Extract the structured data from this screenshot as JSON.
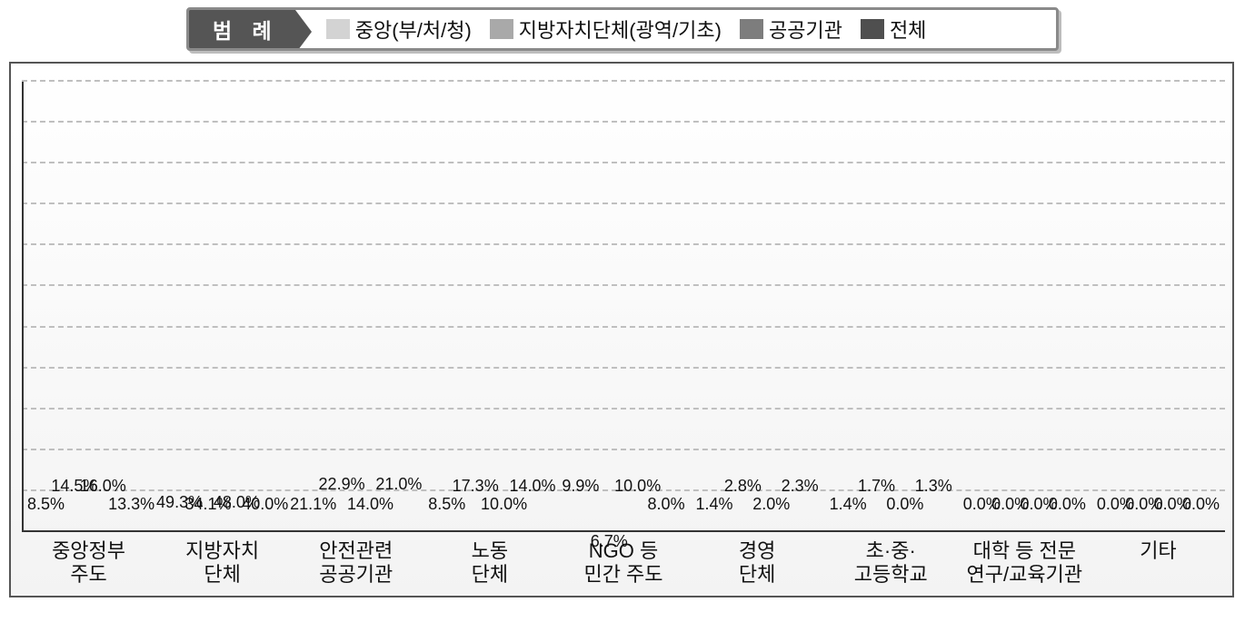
{
  "legend": {
    "title": "범 례",
    "items": [
      {
        "label": "중앙(부/처/청)"
      },
      {
        "label": "지방자치단체(광역/기초)"
      },
      {
        "label": "공공기관"
      },
      {
        "label": "전체"
      }
    ]
  },
  "chart": {
    "type": "bar-grouped",
    "y_max": 55,
    "grid_step": 5,
    "grid_color": "#bfbfbf",
    "axis_color": "#333333",
    "background_top": "#ffffff",
    "background_bottom": "#f3f3f3",
    "series_colors": [
      "#d3d3d3",
      "#a9a9a9",
      "#7d7d7d",
      "#4f4f4f"
    ],
    "categories": [
      {
        "label_lines": [
          "중앙정부",
          "주도"
        ],
        "values": [
          8.5,
          14.5,
          16.0,
          13.3
        ],
        "value_labels": [
          "8.5%",
          "14.5%",
          "16.0%",
          "13.3%"
        ],
        "label_dy": [
          -2,
          -22,
          -22,
          -2
        ]
      },
      {
        "label_lines": [
          "지방자치",
          "단체"
        ],
        "values": [
          49.3,
          34.1,
          48.0,
          40.0
        ],
        "value_labels": [
          "49.3%",
          "34.1%",
          "48.0%",
          "40.0%"
        ],
        "label_dy": [
          -4,
          -2,
          -4,
          -2
        ]
      },
      {
        "label_lines": [
          "안전관련",
          "공공기관"
        ],
        "values": [
          21.1,
          22.9,
          14.0,
          21.0
        ],
        "value_labels": [
          "21.1%",
          "22.9%",
          "14.0%",
          "21.0%"
        ],
        "label_dy": [
          -2,
          -24,
          -2,
          -24
        ]
      },
      {
        "label_lines": [
          "노동",
          "단체"
        ],
        "values": [
          8.5,
          17.3,
          10.0,
          14.0
        ],
        "value_labels": [
          "8.5%",
          "17.3%",
          "10.0%",
          "14.0%"
        ],
        "label_dy": [
          -2,
          -22,
          -2,
          -22
        ]
      },
      {
        "label_lines": [
          "NGO 등",
          "민간 주도"
        ],
        "values": [
          9.9,
          6.7,
          10.0,
          8.0
        ],
        "value_labels": [
          "9.9%",
          "6.7%",
          "10.0%",
          "8.0%"
        ],
        "label_dy": [
          -22,
          20,
          -22,
          -2
        ]
      },
      {
        "label_lines": [
          "경영",
          "단체"
        ],
        "values": [
          1.4,
          2.8,
          2.0,
          2.3
        ],
        "value_labels": [
          "1.4%",
          "2.8%",
          "2.0%",
          "2.3%"
        ],
        "label_dy": [
          -2,
          -22,
          -2,
          -22
        ]
      },
      {
        "label_lines": [
          "초·중·",
          "고등학교"
        ],
        "values": [
          1.4,
          1.7,
          0.0,
          1.3
        ],
        "value_labels": [
          "1.4%",
          "1.7%",
          "0.0%",
          "1.3%"
        ],
        "label_dy": [
          -2,
          -22,
          -2,
          -22
        ]
      },
      {
        "label_lines": [
          "대학 등 전문",
          "연구/교육기관"
        ],
        "values": [
          0.0,
          0.0,
          0.0,
          0.0
        ],
        "value_labels": [
          "0.0%",
          "0.0%",
          "0.0%",
          "0.0%"
        ],
        "label_dy": [
          -2,
          -2,
          -2,
          -2
        ]
      },
      {
        "label_lines": [
          "기타"
        ],
        "values": [
          0.0,
          0.0,
          0.0,
          0.0
        ],
        "value_labels": [
          "0.0%",
          "0.0%",
          "0.0%",
          "0.0%"
        ],
        "label_dy": [
          -2,
          -2,
          -2,
          -2
        ]
      }
    ]
  }
}
